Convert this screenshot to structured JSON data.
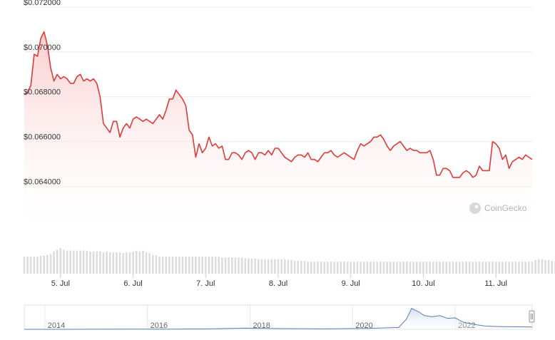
{
  "chart_data": {
    "type": "line",
    "series": [
      {
        "color": "#e03a3a",
        "values": [
          0.0681,
          0.0682,
          0.0685,
          0.0699,
          0.0698,
          0.0706,
          0.0709,
          0.0703,
          0.0693,
          0.0687,
          0.069,
          0.0688,
          0.0689,
          0.0688,
          0.0686,
          0.0686,
          0.0689,
          0.069,
          0.0687,
          0.0688,
          0.0687,
          0.0688,
          0.0686,
          0.068,
          0.0668,
          0.0666,
          0.0664,
          0.0669,
          0.0669,
          0.0662,
          0.0666,
          0.0668,
          0.0666,
          0.067,
          0.0671,
          0.067,
          0.0669,
          0.067,
          0.0669,
          0.0668,
          0.067,
          0.0672,
          0.067,
          0.0674,
          0.0679,
          0.0679,
          0.0683,
          0.0681,
          0.0679,
          0.0676,
          0.0665,
          0.0663,
          0.0653,
          0.0659,
          0.0655,
          0.0657,
          0.0662,
          0.0658,
          0.0659,
          0.0657,
          0.0658,
          0.0652,
          0.0652,
          0.0655,
          0.0655,
          0.0654,
          0.0652,
          0.0655,
          0.0656,
          0.0655,
          0.0652,
          0.0655,
          0.0655,
          0.0654,
          0.0656,
          0.0654,
          0.0657,
          0.0657,
          0.0655,
          0.0653,
          0.0652,
          0.0651,
          0.0653,
          0.0654,
          0.0654,
          0.0653,
          0.0655,
          0.0652,
          0.0652,
          0.0651,
          0.0653,
          0.0655,
          0.0655,
          0.0656,
          0.0654,
          0.0653,
          0.0654,
          0.0655,
          0.0654,
          0.0653,
          0.0652,
          0.0656,
          0.0659,
          0.0658,
          0.0659,
          0.066,
          0.0662,
          0.0662,
          0.0663,
          0.0661,
          0.0658,
          0.0656,
          0.0658,
          0.0659,
          0.066,
          0.0658,
          0.0656,
          0.0657,
          0.0656,
          0.0656,
          0.0655,
          0.0655,
          0.0655,
          0.0656,
          0.0652,
          0.0645,
          0.0645,
          0.0648,
          0.0648,
          0.0647,
          0.0644,
          0.0644,
          0.0644,
          0.0646,
          0.0647,
          0.0646,
          0.0644,
          0.0645,
          0.0649,
          0.0647,
          0.0647,
          0.0647,
          0.066,
          0.0659,
          0.0657,
          0.0652,
          0.0654,
          0.0648,
          0.0651,
          0.0652,
          0.0653,
          0.0652,
          0.0654,
          0.0653,
          0.0652
        ]
      }
    ],
    "y_tick_labels": [
      "$0.064000",
      "$0.066000",
      "$0.068000",
      "$0.070000",
      "$0.072000"
    ],
    "y_ticks": [
      0.064,
      0.066,
      0.068,
      0.07,
      0.072
    ],
    "ylim": [
      0.0622,
      0.072
    ],
    "x_tick_labels": [
      "5. Jul",
      "6. Jul",
      "7. Jul",
      "8. Jul",
      "9. Jul",
      "10. Jul",
      "11. Jul"
    ],
    "x_ticks_index": [
      11,
      33,
      55,
      77,
      99,
      121,
      143
    ],
    "volume": [
      20,
      20,
      20,
      20,
      20,
      21,
      21,
      22,
      23,
      26,
      28,
      30,
      28,
      27,
      27,
      27,
      27,
      27,
      27,
      27,
      26,
      26,
      26,
      26,
      25,
      26,
      25,
      25,
      25,
      25,
      24,
      25,
      25,
      26,
      27,
      26,
      27,
      25,
      24,
      22,
      21,
      20,
      20,
      20,
      20,
      20,
      20,
      20,
      20,
      20,
      20,
      20,
      20,
      20,
      20,
      20,
      20,
      20,
      20,
      20,
      19,
      19,
      19,
      19,
      19,
      19,
      19,
      18,
      18,
      18,
      18,
      17,
      17,
      17,
      17,
      17,
      17,
      17,
      17,
      17,
      16,
      16,
      15,
      15,
      15,
      15,
      14,
      14,
      14,
      14,
      14,
      14,
      14,
      14,
      14,
      14,
      14,
      14,
      14,
      14,
      14,
      14,
      14,
      14,
      14,
      14,
      14,
      14,
      14,
      14,
      14,
      14,
      14,
      14,
      14,
      14,
      14,
      14,
      14,
      14,
      14,
      14,
      14,
      14,
      14,
      14,
      14,
      14,
      14,
      14,
      14,
      14,
      14,
      14,
      14,
      14,
      14,
      14,
      14,
      14,
      14,
      14,
      14,
      14,
      14,
      14,
      14,
      14,
      14,
      14,
      14,
      14,
      14,
      14,
      14,
      16,
      17,
      17,
      16,
      16,
      15,
      15,
      15,
      15,
      15,
      15,
      15,
      15
    ],
    "volume_color": "#dcdcdc",
    "navigator": {
      "tick_labels": [
        "2014",
        "2016",
        "2018",
        "2020",
        "2022"
      ],
      "years": [
        2014,
        2016,
        2018,
        2020,
        2022
      ],
      "range": [
        2013.6,
        2023.5
      ],
      "series": {
        "x": [
          2013.6,
          2014.5,
          2015.5,
          2016.5,
          2017.2,
          2017.9,
          2018.6,
          2019.5,
          2020.3,
          2020.9,
          2021.05,
          2021.15,
          2021.3,
          2021.4,
          2021.55,
          2021.7,
          2021.85,
          2022.0,
          2022.15,
          2022.35,
          2022.6,
          2022.9,
          2023.2,
          2023.5
        ],
        "values": [
          0,
          0,
          0.005,
          0.01,
          0.02,
          0.05,
          0.03,
          0.02,
          0.04,
          0.08,
          0.45,
          0.92,
          0.75,
          0.6,
          0.55,
          0.6,
          0.48,
          0.5,
          0.32,
          0.22,
          0.14,
          0.12,
          0.11,
          0.1
        ]
      }
    },
    "credit": "CoinGecko",
    "line_color": "#e03a3a",
    "fill_color": "#f7c9c9"
  }
}
